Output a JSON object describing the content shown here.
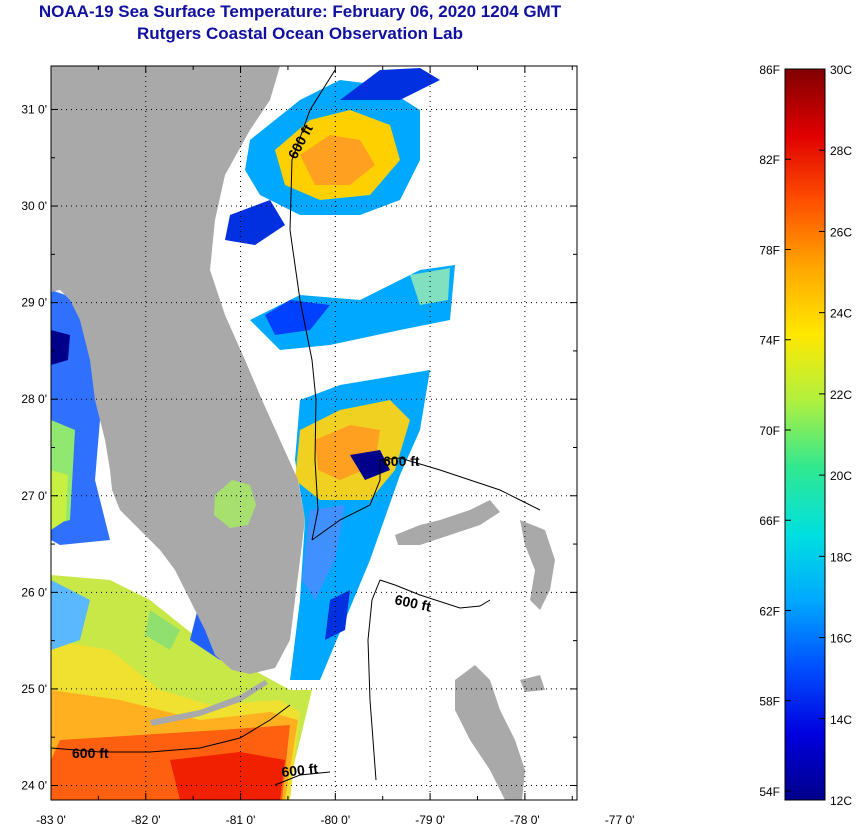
{
  "header": {
    "title": "NOAA-19 Sea Surface Temperature:  February 06, 2020 1204 GMT",
    "subtitle": "Rutgers Coastal Ocean Observation Lab"
  },
  "map": {
    "lat_labels": [
      "31 0'",
      "30 0'",
      "29 0'",
      "28 0'",
      "27 0'",
      "26 0'",
      "25 0'",
      "24 0'"
    ],
    "lon_labels": [
      "-83 0'",
      "-82 0'",
      "-81 0'",
      "-80 0'",
      "-79 0'",
      "-78 0'",
      "-77 0'"
    ],
    "lat_values": [
      31,
      30,
      29,
      28,
      27,
      26,
      25,
      24
    ],
    "lon_values": [
      -83,
      -82,
      -81,
      -80,
      -79,
      -78,
      -77
    ],
    "lat_range": [
      23.85,
      31.45
    ],
    "lon_range": [
      -83,
      -77.45
    ],
    "isobath_label": "600 ft",
    "land_color": "#a9a9a9"
  },
  "colorbar": {
    "fahrenheit": [
      "86F",
      "82F",
      "78F",
      "74F",
      "70F",
      "66F",
      "62F",
      "58F",
      "54F"
    ],
    "celsius": [
      "30C",
      "28C",
      "26C",
      "24C",
      "22C",
      "20C",
      "18C",
      "16C",
      "14C",
      "12C"
    ],
    "fahrenheit_values": [
      86,
      82,
      78,
      74,
      70,
      66,
      62,
      58,
      54
    ],
    "celsius_values": [
      30,
      28,
      26,
      24,
      22,
      20,
      18,
      16,
      14,
      12
    ],
    "range_c": [
      12,
      30
    ],
    "colors": [
      "#00008a",
      "#0000e0",
      "#0050ff",
      "#00a8ff",
      "#00e0e0",
      "#30e890",
      "#b0f040",
      "#ffe800",
      "#ffa800",
      "#ff5000",
      "#e00000",
      "#800000"
    ]
  }
}
